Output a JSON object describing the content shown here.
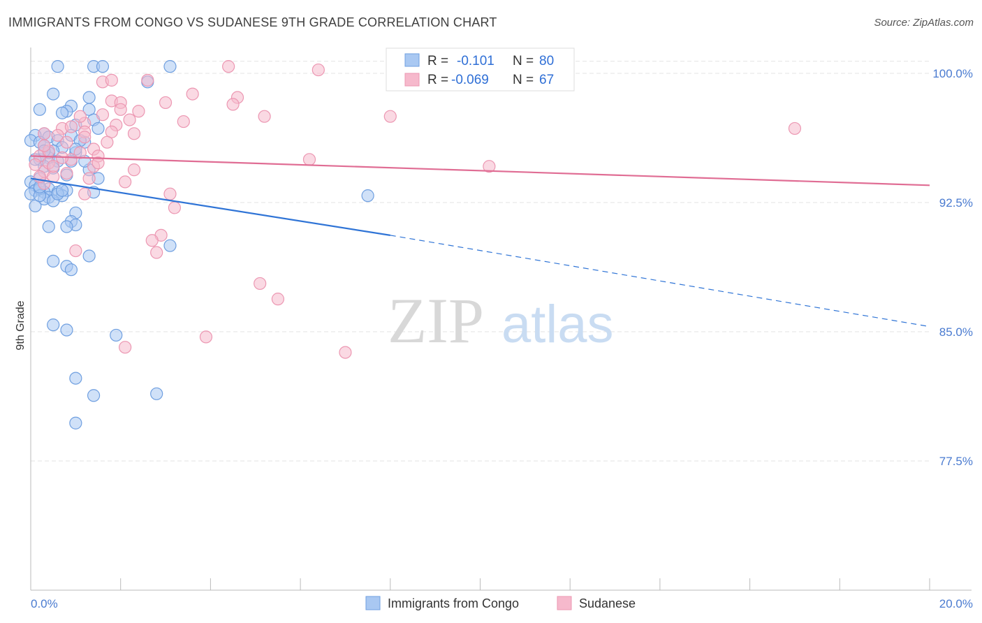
{
  "header": {
    "title": "IMMIGRANTS FROM CONGO VS SUDANESE 9TH GRADE CORRELATION CHART",
    "source": "Source: ZipAtlas.com"
  },
  "watermark": {
    "zip": "ZIP",
    "atlas": "atlas"
  },
  "colors": {
    "blue_fill": "#a9c8f2",
    "blue_stroke": "#6f9fe0",
    "blue_line": "#2f74d6",
    "pink_fill": "#f6b9cc",
    "pink_stroke": "#ec97b2",
    "pink_line": "#e06d94",
    "tick_text": "#4a7bd0",
    "grid": "#e3e3e3"
  },
  "legend": {
    "rows": [
      {
        "r_label": "R =",
        "r_value": "-0.101",
        "n_label": "N =",
        "n_value": "80"
      },
      {
        "r_label": "R =",
        "r_value": "-0.069",
        "n_label": "N =",
        "n_value": "67"
      }
    ]
  },
  "chart_data": {
    "type": "scatter",
    "title": "IMMIGRANTS FROM CONGO VS SUDANESE 9TH GRADE CORRELATION CHART",
    "xlabel": "",
    "ylabel": "9th Grade",
    "xlim": [
      0.0,
      20.0
    ],
    "ylim": [
      70.0,
      101.5
    ],
    "x_tick_labels": [
      "0.0%",
      "20.0%"
    ],
    "y_ticks": [
      77.5,
      85.0,
      92.5,
      100.0
    ],
    "y_tick_labels": [
      "77.5%",
      "85.0%",
      "92.5%",
      "100.0%"
    ],
    "grid": true,
    "series": [
      {
        "name": "Immigrants from Congo",
        "R": -0.101,
        "N": 80,
        "trend": {
          "x0": 0.0,
          "y0": 93.9,
          "x1": 8.0,
          "y1": 90.6,
          "dash_to_x": 20.0,
          "dash_to_y": 85.3
        },
        "points": [
          [
            0.6,
            100.4
          ],
          [
            1.4,
            100.4
          ],
          [
            1.6,
            100.4
          ],
          [
            3.1,
            100.4
          ],
          [
            2.6,
            99.5
          ],
          [
            0.5,
            98.8
          ],
          [
            1.3,
            98.6
          ],
          [
            0.9,
            98.1
          ],
          [
            0.2,
            97.9
          ],
          [
            0.8,
            97.8
          ],
          [
            1.3,
            97.9
          ],
          [
            1.4,
            97.3
          ],
          [
            0.7,
            97.7
          ],
          [
            1.0,
            97.0
          ],
          [
            1.5,
            96.8
          ],
          [
            0.3,
            96.5
          ],
          [
            0.4,
            96.3
          ],
          [
            0.1,
            96.4
          ],
          [
            0.0,
            96.1
          ],
          [
            0.2,
            96.0
          ],
          [
            0.6,
            96.1
          ],
          [
            0.9,
            96.4
          ],
          [
            1.2,
            96.0
          ],
          [
            0.3,
            95.8
          ],
          [
            0.7,
            95.7
          ],
          [
            0.5,
            95.5
          ],
          [
            1.0,
            95.4
          ],
          [
            0.4,
            95.1
          ],
          [
            0.2,
            95.0
          ],
          [
            0.6,
            94.9
          ],
          [
            0.9,
            94.9
          ],
          [
            0.3,
            94.6
          ],
          [
            0.5,
            94.5
          ],
          [
            1.3,
            94.4
          ],
          [
            0.8,
            94.1
          ],
          [
            0.2,
            93.9
          ],
          [
            1.5,
            93.9
          ],
          [
            0.0,
            93.7
          ],
          [
            0.1,
            93.5
          ],
          [
            0.4,
            93.3
          ],
          [
            0.1,
            93.2
          ],
          [
            0.3,
            93.1
          ],
          [
            0.6,
            93.1
          ],
          [
            0.8,
            93.2
          ],
          [
            1.4,
            93.1
          ],
          [
            0.0,
            93.0
          ],
          [
            0.4,
            92.8
          ],
          [
            0.7,
            92.9
          ],
          [
            0.3,
            92.7
          ],
          [
            0.5,
            92.6
          ],
          [
            0.1,
            92.3
          ],
          [
            1.0,
            91.9
          ],
          [
            0.9,
            91.4
          ],
          [
            1.0,
            91.2
          ],
          [
            0.8,
            91.1
          ],
          [
            0.4,
            91.1
          ],
          [
            3.1,
            90.0
          ],
          [
            1.3,
            89.4
          ],
          [
            0.5,
            89.1
          ],
          [
            0.8,
            88.8
          ],
          [
            0.9,
            88.6
          ],
          [
            7.5,
            92.9
          ],
          [
            0.5,
            85.4
          ],
          [
            0.8,
            85.1
          ],
          [
            1.9,
            84.8
          ],
          [
            1.0,
            82.3
          ],
          [
            1.4,
            81.3
          ],
          [
            2.8,
            81.4
          ],
          [
            1.0,
            79.7
          ],
          [
            0.2,
            93.3
          ],
          [
            0.6,
            93.0
          ],
          [
            0.2,
            92.9
          ],
          [
            1.2,
            94.9
          ],
          [
            0.1,
            95.0
          ],
          [
            0.4,
            95.4
          ],
          [
            1.1,
            96.1
          ],
          [
            0.2,
            93.4
          ],
          [
            0.7,
            93.2
          ],
          [
            0.3,
            95.5
          ],
          [
            1.0,
            95.6
          ]
        ]
      },
      {
        "name": "Sudanese",
        "R": -0.069,
        "N": 67,
        "trend": {
          "x0": 0.0,
          "y0": 95.2,
          "x1": 20.0,
          "y1": 93.5
        },
        "points": [
          [
            4.4,
            100.4
          ],
          [
            6.4,
            100.2
          ],
          [
            1.6,
            99.5
          ],
          [
            1.8,
            99.6
          ],
          [
            2.6,
            99.6
          ],
          [
            3.6,
            98.8
          ],
          [
            4.6,
            98.6
          ],
          [
            1.8,
            98.4
          ],
          [
            2.0,
            98.3
          ],
          [
            3.0,
            98.3
          ],
          [
            4.5,
            98.2
          ],
          [
            2.0,
            97.9
          ],
          [
            2.4,
            97.8
          ],
          [
            1.6,
            97.6
          ],
          [
            5.2,
            97.5
          ],
          [
            8.0,
            97.5
          ],
          [
            2.2,
            97.3
          ],
          [
            3.4,
            97.2
          ],
          [
            1.2,
            97.1
          ],
          [
            1.9,
            97.0
          ],
          [
            0.7,
            96.8
          ],
          [
            1.2,
            96.6
          ],
          [
            1.8,
            96.6
          ],
          [
            2.3,
            96.5
          ],
          [
            0.3,
            96.5
          ],
          [
            0.6,
            96.4
          ],
          [
            1.2,
            96.3
          ],
          [
            1.7,
            96.0
          ],
          [
            17.0,
            96.8
          ],
          [
            1.4,
            95.6
          ],
          [
            1.1,
            95.4
          ],
          [
            1.5,
            95.2
          ],
          [
            0.2,
            95.2
          ],
          [
            0.9,
            95.0
          ],
          [
            6.2,
            95.0
          ],
          [
            1.4,
            94.6
          ],
          [
            2.3,
            94.4
          ],
          [
            10.2,
            94.6
          ],
          [
            0.3,
            94.3
          ],
          [
            0.5,
            94.0
          ],
          [
            2.1,
            93.7
          ],
          [
            0.3,
            93.6
          ],
          [
            1.2,
            93.0
          ],
          [
            3.1,
            93.0
          ],
          [
            3.2,
            92.2
          ],
          [
            2.9,
            90.6
          ],
          [
            2.7,
            90.3
          ],
          [
            2.8,
            89.6
          ],
          [
            1.0,
            89.7
          ],
          [
            5.1,
            87.8
          ],
          [
            5.5,
            86.9
          ],
          [
            3.9,
            84.7
          ],
          [
            2.1,
            84.1
          ],
          [
            7.0,
            83.8
          ],
          [
            0.4,
            94.8
          ],
          [
            0.7,
            95.1
          ],
          [
            1.3,
            93.9
          ],
          [
            0.1,
            94.7
          ],
          [
            0.4,
            95.5
          ],
          [
            0.8,
            96.0
          ],
          [
            0.2,
            94.0
          ],
          [
            0.5,
            94.6
          ],
          [
            1.1,
            97.5
          ],
          [
            0.3,
            95.8
          ],
          [
            0.8,
            94.2
          ],
          [
            1.5,
            94.8
          ],
          [
            0.9,
            96.9
          ]
        ]
      }
    ]
  }
}
